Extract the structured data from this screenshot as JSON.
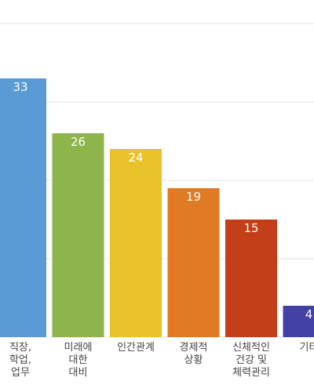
{
  "chart_data": {
    "type": "bar",
    "categories": [
      "직장,\n학업,\n업무",
      "미래에\n대한\n대비",
      "인간관계",
      "경제적\n상황",
      "신체적인\n건강 및\n체력관리",
      "기타"
    ],
    "values": [
      33,
      26,
      24,
      19,
      15,
      4
    ],
    "ylim": [
      0,
      40
    ],
    "grid": true,
    "legend": "none",
    "colors": [
      "#5b9bd5",
      "#8db54b",
      "#e8c22b",
      "#e07a25",
      "#c23f19",
      "#4340a6"
    ],
    "gridline_color": "#e6e6e6",
    "value_label_color": "#ffffff"
  }
}
